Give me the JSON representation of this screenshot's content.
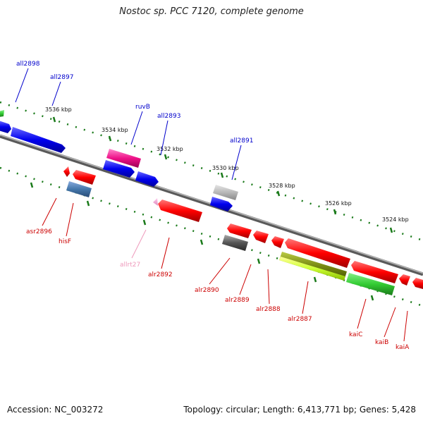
{
  "title": "Nostoc sp. PCC 7120, complete genome",
  "footer": {
    "accession": "Accession: NC_003272",
    "summary": "Topology: circular; Length: 6,413,771 bp; Genes: 5,428"
  },
  "colors": {
    "axis": "#808080",
    "tick": "#1a7a1a",
    "forward_label": "#0000cc",
    "reverse_label": "#cc0000",
    "rna_label": "#ee99bb"
  },
  "ticks": [
    {
      "label": "3536 kbp"
    },
    {
      "label": "3534 kbp"
    },
    {
      "label": "3532 kbp"
    },
    {
      "label": "3530 kbp"
    },
    {
      "label": "3528 kbp"
    },
    {
      "label": "3526 kbp"
    },
    {
      "label": "3524 kbp"
    }
  ],
  "forward_labels": [
    {
      "text": "all2898"
    },
    {
      "text": "all2897"
    },
    {
      "text": "ruvB"
    },
    {
      "text": "all2893"
    },
    {
      "text": "all2891"
    }
  ],
  "reverse_labels": [
    {
      "text": "asr2896"
    },
    {
      "text": "hisF"
    },
    {
      "text": "allrt27"
    },
    {
      "text": "alr2892"
    },
    {
      "text": "alr2890"
    },
    {
      "text": "alr2889"
    },
    {
      "text": "alr2888"
    },
    {
      "text": "alr2887"
    },
    {
      "text": "kaiC"
    },
    {
      "text": "kaiB"
    },
    {
      "text": "kaiA"
    }
  ]
}
